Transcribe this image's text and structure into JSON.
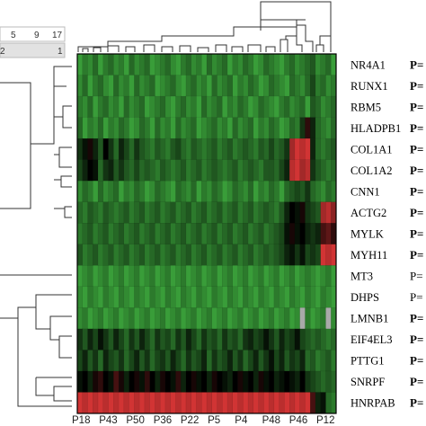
{
  "chart_data": {
    "type": "heatmap",
    "title": "",
    "xlabel": "",
    "ylabel": "",
    "color_low": "#3fae3f",
    "color_mid": "#000000",
    "color_high": "#e83a3a",
    "missing_color": "#a9a9a9",
    "color_scale_ticks": [
      "5",
      "9",
      "17"
    ],
    "color_scale_sub": [
      "2",
      "1"
    ],
    "genes": [
      "NR4A1",
      "RUNX1",
      "RBM5",
      "HLADPB1",
      "COL1A1",
      "COL1A2",
      "CNN1",
      "ACTG2",
      "MYLK",
      "MYH11",
      "MT3",
      "DHPS",
      "LMNB1",
      "EIF4EL3",
      "PTTG1",
      "SNRPF",
      "HNRPAB"
    ],
    "p_labels": [
      {
        "text": "P=",
        "bold": true
      },
      {
        "text": "P=",
        "bold": true
      },
      {
        "text": "P=",
        "bold": true
      },
      {
        "text": "P=",
        "bold": true
      },
      {
        "text": "P=",
        "bold": true
      },
      {
        "text": "P=",
        "bold": true
      },
      {
        "text": "P=",
        "bold": true
      },
      {
        "text": "P=",
        "bold": true
      },
      {
        "text": "P=",
        "bold": true
      },
      {
        "text": "P=",
        "bold": true
      },
      {
        "text": "P=",
        "bold": false
      },
      {
        "text": "P=",
        "bold": false
      },
      {
        "text": "P=",
        "bold": true
      },
      {
        "text": "P=",
        "bold": true
      },
      {
        "text": "P=",
        "bold": true
      },
      {
        "text": "P=",
        "bold": true
      },
      {
        "text": "P=",
        "bold": true
      }
    ],
    "x_tick_labels": [
      "P18",
      "P43",
      "P50",
      "P36",
      "P22",
      "P5",
      "P4",
      "P48",
      "P46",
      "P12"
    ],
    "n_columns": 50,
    "values": [
      [
        -0.9,
        -0.7,
        -0.8,
        -0.6,
        -0.9,
        -0.7,
        -0.6,
        -0.8,
        -0.7,
        -0.9,
        -0.6,
        -0.8,
        -0.7,
        -0.6,
        -0.9,
        -0.8,
        -0.7,
        -0.6,
        -0.8,
        -0.9,
        -0.7,
        -0.6,
        -0.8,
        -0.7,
        -0.9,
        -0.6,
        -0.8,
        -0.7,
        -0.6,
        -0.9,
        -0.7,
        -0.8,
        -0.6,
        -0.7,
        -0.9,
        -0.8,
        -0.6,
        -0.7,
        -0.8,
        -0.9,
        -0.7,
        -0.6,
        -0.8,
        -0.7,
        -0.6,
        -0.5,
        -0.8,
        -0.7,
        -0.6,
        -0.9
      ],
      [
        -0.8,
        -0.6,
        -0.9,
        -0.7,
        -0.6,
        -0.8,
        -0.9,
        -0.6,
        -0.8,
        -0.7,
        -0.9,
        -0.6,
        -0.8,
        -0.7,
        -0.6,
        -0.9,
        -0.8,
        -0.7,
        -0.6,
        -0.8,
        -0.9,
        -0.7,
        -0.6,
        -0.8,
        -0.7,
        -0.9,
        -0.6,
        -0.8,
        -0.7,
        -0.6,
        -0.9,
        -0.7,
        -0.8,
        -0.6,
        -0.7,
        -0.9,
        -0.8,
        -0.6,
        -0.7,
        -0.8,
        -0.9,
        -0.6,
        -0.7,
        -0.8,
        -0.6,
        -0.4,
        -0.7,
        -0.6,
        -0.8,
        -0.7
      ],
      [
        -0.7,
        -0.8,
        -0.6,
        -0.9,
        -0.7,
        -0.6,
        -0.8,
        -0.7,
        -0.9,
        -0.6,
        -0.8,
        -0.7,
        -0.6,
        -0.9,
        -0.8,
        -0.7,
        -0.6,
        -0.8,
        -0.9,
        -0.7,
        -0.6,
        -0.8,
        -0.7,
        -0.9,
        -0.6,
        -0.8,
        -0.7,
        -0.6,
        -0.9,
        -0.7,
        -0.8,
        -0.6,
        -0.7,
        -0.9,
        -0.8,
        -0.6,
        -0.7,
        -0.8,
        -0.9,
        -0.7,
        -0.6,
        -0.8,
        -0.7,
        -0.6,
        -0.9,
        -0.5,
        -0.6,
        -0.8,
        -0.7,
        -0.6
      ],
      [
        -0.6,
        -0.9,
        -0.7,
        -0.8,
        -0.6,
        -0.9,
        -0.7,
        -0.8,
        -0.6,
        -0.7,
        -0.9,
        -0.8,
        -0.6,
        -0.7,
        -0.9,
        -0.6,
        -0.8,
        -0.7,
        -0.9,
        -0.6,
        -0.8,
        -0.7,
        -0.6,
        -0.9,
        -0.8,
        -0.7,
        -0.6,
        -0.8,
        -0.7,
        -0.9,
        -0.6,
        -0.8,
        -0.7,
        -0.6,
        -0.9,
        -0.7,
        -0.8,
        -0.6,
        -0.7,
        -0.9,
        -0.8,
        -0.6,
        -0.7,
        -0.3,
        0.2,
        -0.2,
        -0.6,
        -0.7,
        -0.8,
        -0.6
      ],
      [
        -0.3,
        -0.1,
        0.1,
        -0.2,
        -0.5,
        0.0,
        -0.3,
        -0.6,
        -0.2,
        -0.4,
        -0.6,
        -0.3,
        -0.5,
        -0.6,
        -0.7,
        -0.5,
        -0.6,
        -0.7,
        -0.5,
        -0.4,
        -0.6,
        -0.7,
        -0.5,
        -0.6,
        -0.7,
        -0.6,
        -0.5,
        -0.7,
        -0.6,
        -0.5,
        -0.7,
        -0.6,
        -0.5,
        -0.6,
        -0.7,
        -0.5,
        -0.6,
        -0.4,
        -0.6,
        -0.5,
        -0.3,
        0.7,
        0.9,
        0.8,
        0.9,
        -0.2,
        -0.6,
        -0.7,
        -0.6,
        -0.5
      ],
      [
        -0.4,
        -0.2,
        0.0,
        -0.1,
        -0.6,
        -0.3,
        -0.2,
        -0.5,
        -0.3,
        -0.5,
        -0.6,
        -0.4,
        -0.6,
        -0.5,
        -0.6,
        -0.7,
        -0.5,
        -0.6,
        -0.7,
        -0.6,
        -0.5,
        -0.7,
        -0.6,
        -0.5,
        -0.7,
        -0.6,
        -0.5,
        -0.6,
        -0.7,
        -0.6,
        -0.5,
        -0.7,
        -0.6,
        -0.5,
        -0.6,
        -0.7,
        -0.5,
        -0.5,
        -0.6,
        -0.4,
        -0.2,
        0.8,
        0.9,
        0.7,
        0.8,
        -0.3,
        -0.5,
        -0.6,
        -0.7,
        -0.6
      ],
      [
        -0.8,
        -0.6,
        -0.7,
        -0.9,
        -0.6,
        -0.8,
        -0.7,
        -0.6,
        -0.9,
        -0.7,
        -0.8,
        -0.6,
        -0.7,
        -0.9,
        -0.8,
        -0.6,
        -0.7,
        -0.8,
        -0.9,
        -0.6,
        -0.7,
        -0.8,
        -0.6,
        -0.9,
        -0.7,
        -0.8,
        -0.6,
        -0.7,
        -0.9,
        -0.8,
        -0.6,
        -0.7,
        -0.8,
        -0.6,
        -0.9,
        -0.7,
        -0.8,
        -0.6,
        -0.7,
        -0.9,
        -0.6,
        -0.5,
        -0.4,
        -0.5,
        -0.3,
        -0.6,
        -0.7,
        -0.8,
        -0.6,
        -0.7
      ],
      [
        -0.6,
        -0.7,
        -0.5,
        -0.6,
        -0.7,
        -0.5,
        -0.6,
        -0.7,
        -0.6,
        -0.5,
        -0.7,
        -0.6,
        -0.5,
        -0.7,
        -0.6,
        -0.5,
        -0.7,
        -0.6,
        -0.5,
        -0.7,
        -0.6,
        -0.5,
        -0.7,
        -0.6,
        -0.5,
        -0.7,
        -0.6,
        -0.5,
        -0.7,
        -0.6,
        -0.5,
        -0.7,
        -0.6,
        -0.5,
        -0.7,
        -0.6,
        -0.5,
        -0.6,
        -0.7,
        -0.5,
        -0.2,
        0.0,
        -0.1,
        0.1,
        -0.3,
        -0.4,
        -0.5,
        0.7,
        0.8,
        0.6
      ],
      [
        -0.7,
        -0.6,
        -0.5,
        -0.7,
        -0.6,
        -0.5,
        -0.7,
        -0.6,
        -0.5,
        -0.7,
        -0.6,
        -0.5,
        -0.7,
        -0.6,
        -0.5,
        -0.7,
        -0.6,
        -0.5,
        -0.7,
        -0.6,
        -0.5,
        -0.7,
        -0.6,
        -0.5,
        -0.7,
        -0.6,
        -0.5,
        -0.7,
        -0.6,
        -0.5,
        -0.7,
        -0.6,
        -0.5,
        -0.7,
        -0.6,
        -0.5,
        -0.7,
        -0.6,
        -0.5,
        -0.4,
        -0.1,
        0.1,
        -0.1,
        0.0,
        -0.2,
        -0.3,
        -0.2,
        0.3,
        0.4,
        0.2
      ],
      [
        -0.5,
        -0.7,
        -0.6,
        -0.5,
        -0.7,
        -0.6,
        -0.5,
        -0.7,
        -0.6,
        -0.5,
        -0.7,
        -0.6,
        -0.5,
        -0.7,
        -0.6,
        -0.5,
        -0.7,
        -0.6,
        -0.5,
        -0.7,
        -0.6,
        -0.5,
        -0.7,
        -0.6,
        -0.5,
        -0.7,
        -0.6,
        -0.5,
        -0.7,
        -0.6,
        -0.5,
        -0.7,
        -0.6,
        -0.5,
        -0.7,
        -0.6,
        -0.5,
        -0.6,
        -0.5,
        -0.4,
        -0.2,
        -0.1,
        -0.3,
        -0.1,
        -0.4,
        -0.3,
        -0.4,
        0.9,
        0.8,
        0.9
      ],
      [
        -0.9,
        -0.8,
        -0.7,
        -0.9,
        -0.8,
        -0.7,
        -0.9,
        -0.8,
        -0.7,
        -0.9,
        -0.8,
        -0.7,
        -0.9,
        -0.8,
        -0.7,
        -0.9,
        -0.8,
        -0.7,
        -0.9,
        -0.8,
        -0.7,
        -0.9,
        -0.8,
        -0.7,
        -0.9,
        -0.8,
        -0.7,
        -0.9,
        -0.8,
        -0.7,
        -0.9,
        -0.8,
        -0.7,
        -0.9,
        -0.8,
        -0.7,
        -0.9,
        -0.8,
        -0.7,
        -0.9,
        -0.8,
        -0.7,
        -0.9,
        -0.8,
        -0.7,
        -0.8,
        -0.9,
        -0.8,
        -0.7,
        -0.9
      ],
      [
        -0.8,
        -0.9,
        -0.7,
        -0.8,
        -0.9,
        -0.7,
        -0.8,
        -0.9,
        -0.7,
        -0.8,
        -0.9,
        -0.7,
        -0.8,
        -0.9,
        -0.7,
        -0.8,
        -0.9,
        -0.7,
        -0.8,
        -0.9,
        -0.7,
        -0.8,
        -0.9,
        -0.7,
        -0.8,
        -0.9,
        -0.7,
        -0.8,
        -0.9,
        -0.7,
        -0.8,
        -0.9,
        -0.7,
        -0.8,
        -0.9,
        -0.7,
        -0.8,
        -0.9,
        -0.7,
        -0.8,
        -0.9,
        -0.7,
        -0.8,
        -0.9,
        -0.7,
        -0.8,
        -0.9,
        -0.7,
        -0.8,
        -0.9
      ],
      [
        -0.8,
        -0.7,
        -0.9,
        -0.8,
        -0.7,
        -0.9,
        -0.8,
        -0.7,
        -0.9,
        -0.8,
        -0.7,
        -0.9,
        -0.8,
        -0.7,
        -0.9,
        -0.8,
        -0.7,
        -0.9,
        -0.8,
        -0.7,
        -0.9,
        -0.8,
        -0.7,
        -0.9,
        -0.8,
        -0.7,
        -0.9,
        -0.8,
        -0.7,
        -0.9,
        -0.8,
        -0.7,
        -0.9,
        -0.8,
        -0.7,
        -0.9,
        -0.8,
        -0.7,
        -0.9,
        -0.8,
        -0.7,
        -0.9,
        -0.8,
        null,
        -0.7,
        -0.9,
        -0.8,
        -0.7,
        null,
        -0.8
      ],
      [
        -0.3,
        -0.5,
        -0.2,
        -0.4,
        -0.1,
        -0.3,
        -0.5,
        -0.2,
        -0.4,
        -0.6,
        -0.3,
        -0.5,
        -0.2,
        -0.4,
        -0.6,
        -0.3,
        -0.5,
        -0.4,
        -0.6,
        -0.3,
        -0.5,
        -0.2,
        -0.4,
        -0.6,
        -0.3,
        -0.5,
        -0.4,
        -0.6,
        -0.3,
        -0.5,
        -0.4,
        -0.6,
        -0.3,
        -0.2,
        -0.4,
        -0.3,
        -0.1,
        -0.3,
        -0.5,
        -0.2,
        -0.4,
        -0.3,
        -0.1,
        -0.4,
        -0.5,
        -0.6,
        -0.5,
        -0.6,
        -0.7,
        -0.6
      ],
      [
        -0.4,
        -0.2,
        -0.5,
        -0.3,
        -0.6,
        -0.2,
        -0.4,
        -0.5,
        -0.3,
        -0.6,
        -0.4,
        -0.2,
        -0.5,
        -0.3,
        -0.6,
        -0.4,
        -0.3,
        -0.5,
        -0.2,
        -0.4,
        -0.6,
        -0.3,
        -0.5,
        -0.4,
        -0.2,
        -0.6,
        -0.3,
        -0.5,
        -0.4,
        -0.2,
        -0.5,
        -0.3,
        -0.6,
        -0.4,
        -0.2,
        -0.5,
        -0.3,
        -0.1,
        -0.4,
        -0.2,
        -0.5,
        -0.3,
        -0.4,
        -0.2,
        -0.6,
        -0.5,
        -0.7,
        -0.6,
        -0.5,
        -0.7
      ],
      [
        -0.1,
        0.0,
        -0.2,
        0.1,
        0.2,
        0.0,
        -0.1,
        0.3,
        0.1,
        -0.2,
        0.0,
        0.1,
        -0.1,
        0.2,
        0.0,
        -0.2,
        0.1,
        0.0,
        -0.1,
        0.2,
        -0.2,
        0.0,
        0.1,
        -0.1,
        0.0,
        -0.2,
        0.1,
        0.0,
        -0.1,
        -0.2,
        0.0,
        0.1,
        -0.1,
        0.0,
        -0.2,
        0.1,
        -0.1,
        0.0,
        -0.2,
        -0.1,
        0.0,
        -0.1,
        -0.2,
        0.0,
        -0.3,
        -0.4,
        -0.5,
        -0.6,
        -0.5,
        -0.6
      ],
      [
        0.9,
        0.8,
        0.9,
        0.8,
        0.9,
        0.8,
        0.9,
        0.8,
        0.9,
        0.8,
        0.9,
        0.8,
        0.9,
        0.8,
        0.9,
        0.8,
        0.9,
        0.8,
        0.9,
        0.8,
        0.9,
        0.8,
        0.9,
        0.8,
        0.9,
        0.8,
        0.9,
        0.8,
        0.9,
        0.8,
        0.9,
        0.8,
        0.9,
        0.8,
        0.9,
        0.8,
        0.9,
        0.8,
        0.9,
        0.8,
        0.9,
        0.8,
        0.9,
        0.8,
        0.9,
        0.3,
        -0.2,
        -0.1,
        -0.6,
        -0.7
      ]
    ]
  }
}
